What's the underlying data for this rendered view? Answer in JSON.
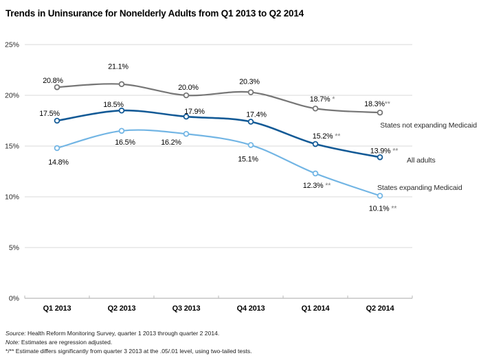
{
  "chart_data": {
    "type": "line",
    "title": "Trends in Uninsurance for Nonelderly Adults from Q1 2013 to Q2 2014",
    "categories": [
      "Q1 2013",
      "Q2 2013",
      "Q3 2013",
      "Q4 2013",
      "Q1 2014",
      "Q2 2014"
    ],
    "y_ticks": [
      "0%",
      "5%",
      "10%",
      "15%",
      "20%",
      "25%"
    ],
    "ylim": [
      0,
      25
    ],
    "grid": true,
    "legend_position": "right-of-last-points",
    "sig_color": "#7f7f7f",
    "gridline_color": "#d9d9d9",
    "axis_color": "#b9b9b9",
    "series": [
      {
        "name": "States not expanding Medicaid",
        "color": "#767676",
        "values": [
          20.8,
          21.1,
          20.0,
          20.3,
          18.7,
          18.3
        ],
        "point_labels": [
          "20.8%",
          "21.1%",
          "20.0%",
          "20.3%",
          "18.7% *",
          "18.3%**"
        ],
        "label_side": "above"
      },
      {
        "name": "All adults",
        "color": "#135a96",
        "values": [
          17.5,
          18.5,
          17.9,
          17.4,
          15.2,
          13.9
        ],
        "point_labels": [
          "17.5%",
          "18.5%",
          "17.9%",
          "17.4%",
          "15.2% **",
          "13.9% **"
        ],
        "label_side": "above"
      },
      {
        "name": "States expanding Medicaid",
        "color": "#72b5e4",
        "values": [
          14.8,
          16.5,
          16.2,
          15.1,
          12.3,
          10.1
        ],
        "point_labels": [
          "14.8%",
          "16.5%",
          "16.2%",
          "15.1%",
          "12.3% **",
          "10.1% **"
        ],
        "label_side": "below"
      }
    ]
  },
  "footnotes": [
    {
      "prefix": "Source:",
      "text": " Health Reform Monitoring Survey, quarter 1 2013 through quarter 2 2014."
    },
    {
      "prefix": "Note:",
      "text": " Estimates are regression adjusted."
    },
    {
      "prefix": "",
      "text": "*/** Estimate differs significantly from quarter 3 2013 at the .05/.01 level, using two-tailed tests."
    }
  ]
}
